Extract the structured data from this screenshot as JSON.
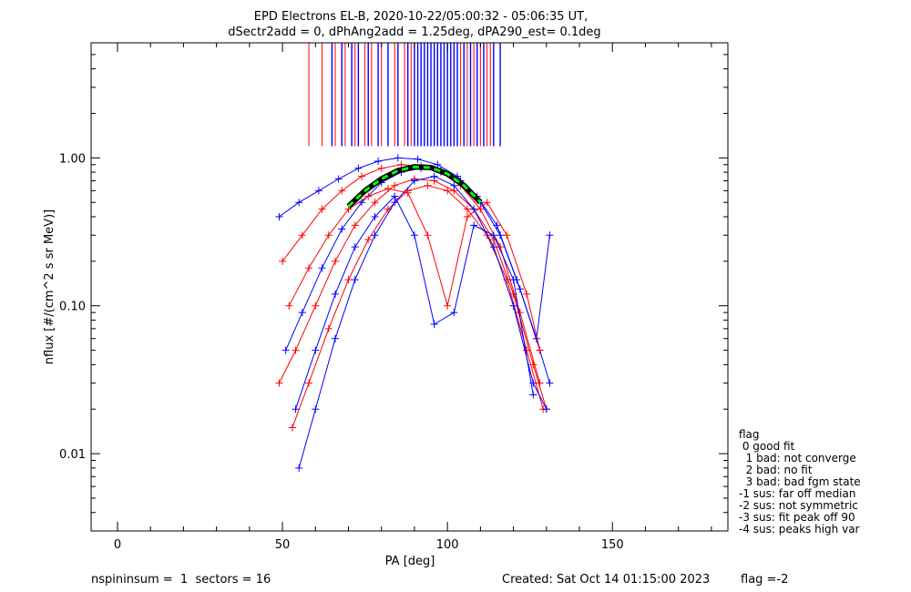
{
  "chart_data": {
    "type": "line",
    "title": "EPD Electrons EL-B, 2020-10-22/05:00:32 - 05:06:35 UT,",
    "subtitle": "dSectr2add = 0, dPhAng2add = 1.25deg, dPA290_est=   0.1deg",
    "xlabel": "PA [deg]",
    "ylabel": "nflux [#/(cm^2 s sr MeV)]",
    "xlim": [
      -8,
      185
    ],
    "ylim": [
      0.003,
      6
    ],
    "y_scale": "log",
    "x_ticks": [
      0,
      50,
      100,
      150
    ],
    "x_tick_labels": [
      "0",
      "50",
      "100",
      "150"
    ],
    "y_ticks": [
      0.01,
      0.1,
      1.0
    ],
    "y_tick_labels": [
      "0.01",
      "0.10",
      "1.00"
    ],
    "grid": false,
    "colors": {
      "red": "#ff0000",
      "blue": "#0000ff",
      "fit": "#00ff00",
      "fit_outline": "#000000"
    },
    "series": [
      {
        "color": "red",
        "x": [
          49,
          54,
          60,
          66,
          72,
          78,
          84,
          90,
          96,
          102,
          108,
          114,
          120,
          126,
          130
        ],
        "y": [
          0.03,
          0.05,
          0.1,
          0.2,
          0.35,
          0.5,
          0.65,
          0.72,
          0.7,
          0.6,
          0.45,
          0.28,
          0.12,
          0.04,
          0.02
        ]
      },
      {
        "color": "blue",
        "x": [
          51,
          56,
          62,
          68,
          74,
          80,
          86,
          92,
          98,
          104,
          110,
          116,
          122,
          128,
          131
        ],
        "y": [
          0.05,
          0.09,
          0.18,
          0.33,
          0.5,
          0.68,
          0.8,
          0.85,
          0.82,
          0.7,
          0.5,
          0.3,
          0.13,
          0.05,
          0.03
        ]
      },
      {
        "color": "red",
        "x": [
          53,
          58,
          64,
          70,
          76,
          82,
          88,
          94,
          100,
          106,
          112,
          118,
          124,
          129
        ],
        "y": [
          0.015,
          0.03,
          0.07,
          0.15,
          0.28,
          0.45,
          0.6,
          0.65,
          0.6,
          0.45,
          0.3,
          0.15,
          0.05,
          0.02
        ]
      },
      {
        "color": "blue",
        "x": [
          55,
          60,
          66,
          72,
          78,
          84,
          90,
          96,
          102,
          108,
          114,
          120,
          126,
          130
        ],
        "y": [
          0.008,
          0.02,
          0.06,
          0.15,
          0.3,
          0.5,
          0.7,
          0.75,
          0.65,
          0.45,
          0.25,
          0.1,
          0.03,
          0.02
        ]
      },
      {
        "color": "red",
        "x": [
          50,
          56,
          62,
          68,
          74,
          80,
          86,
          92,
          98,
          104,
          110,
          116,
          122,
          128
        ],
        "y": [
          0.2,
          0.3,
          0.45,
          0.6,
          0.75,
          0.85,
          0.9,
          0.88,
          0.8,
          0.65,
          0.45,
          0.25,
          0.09,
          0.03
        ]
      },
      {
        "color": "blue",
        "x": [
          49,
          55,
          61,
          67,
          73,
          79,
          85,
          91,
          97,
          103,
          109,
          115,
          121,
          127,
          131
        ],
        "y": [
          0.4,
          0.5,
          0.6,
          0.72,
          0.85,
          0.95,
          1.0,
          0.98,
          0.9,
          0.75,
          0.55,
          0.35,
          0.15,
          0.06,
          0.3
        ]
      },
      {
        "color": "red",
        "x": [
          52,
          58,
          64,
          70,
          76,
          82,
          88,
          94,
          100,
          106,
          112,
          118,
          124,
          128
        ],
        "y": [
          0.1,
          0.18,
          0.3,
          0.45,
          0.55,
          0.62,
          0.58,
          0.3,
          0.1,
          0.4,
          0.5,
          0.3,
          0.12,
          0.05
        ]
      },
      {
        "color": "blue",
        "x": [
          54,
          60,
          66,
          72,
          78,
          84,
          90,
          96,
          102,
          108,
          114,
          120,
          126
        ],
        "y": [
          0.02,
          0.05,
          0.12,
          0.25,
          0.4,
          0.55,
          0.3,
          0.075,
          0.09,
          0.35,
          0.3,
          0.15,
          0.025
        ]
      }
    ],
    "fit_curve": {
      "x": [
        70,
        75,
        80,
        85,
        90,
        95,
        100,
        105,
        110
      ],
      "y": [
        0.47,
        0.6,
        0.72,
        0.82,
        0.87,
        0.86,
        0.78,
        0.65,
        0.5
      ]
    },
    "spikes": {
      "red_x": [
        58,
        62,
        66,
        69,
        72,
        75,
        77,
        80,
        84,
        87,
        89,
        104,
        106,
        108,
        110,
        112,
        113
      ],
      "blue_x": [
        65,
        68,
        71,
        73,
        76,
        79,
        82,
        85,
        88,
        90,
        91,
        92,
        93,
        94,
        95,
        96,
        97,
        98,
        99,
        100,
        101,
        102,
        103,
        105,
        107,
        109,
        111,
        114,
        116
      ],
      "y_top": 6,
      "y_bottom": 1.2
    }
  },
  "legend": {
    "title": "flag",
    "items": [
      " 0 good fit",
      "  1 bad: not converge",
      "  2 bad: no fit",
      "  3 bad: bad fgm state",
      "-1 sus: far off median",
      "-2 sus: not symmetric",
      "-3 sus: fit peak off 90",
      "-4 sus: peaks high var"
    ]
  },
  "footer": {
    "left": "nspininsum =  1  sectors = 16",
    "created": "Created: Sat Oct 14 01:15:00 2023",
    "flag": "flag =-2"
  }
}
